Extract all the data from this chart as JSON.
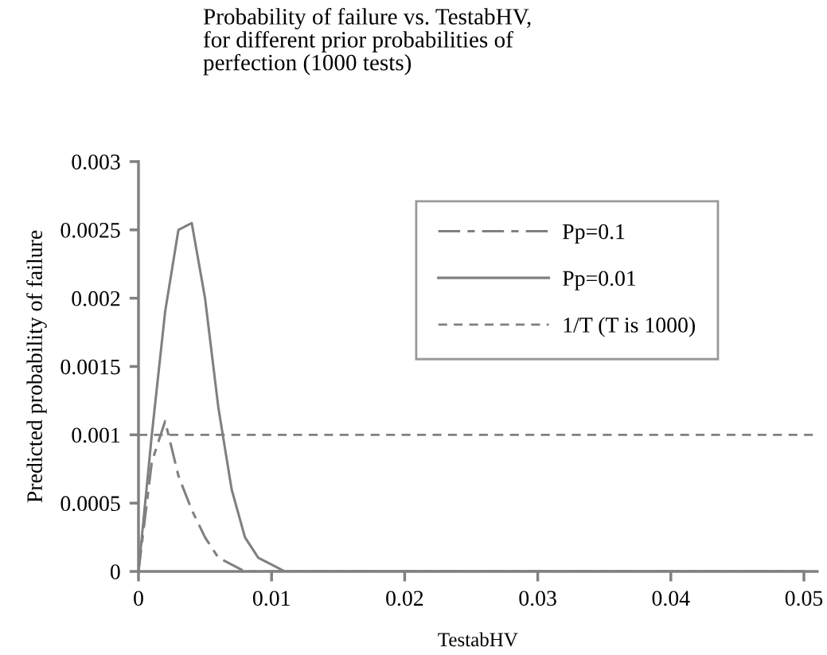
{
  "chart_data": {
    "type": "line",
    "title": "Probability of failure vs. TestabHV,\nfor different prior probabilities of\nperfection (1000 tests)",
    "xlabel": "TestabHV",
    "ylabel": "Predicted probability of failure",
    "series": [
      {
        "name": "Pp=0.1",
        "color": "#808080",
        "line_style": "dashed",
        "x": [
          0,
          0.001,
          0.002,
          0.003,
          0.004,
          0.005,
          0.006,
          0.007,
          0.008,
          0.009,
          0.01,
          0.02,
          0.03,
          0.04,
          0.05
        ],
        "values": [
          0,
          0.0008,
          0.0011,
          0.0007,
          0.00045,
          0.00025,
          0.0001,
          5e-05,
          0,
          0,
          0,
          0,
          0,
          0,
          0
        ]
      },
      {
        "name": "Pp=0.01",
        "color": "#808080",
        "line_style": "solid",
        "x": [
          0,
          0.001,
          0.002,
          0.003,
          0.004,
          0.005,
          0.006,
          0.007,
          0.008,
          0.009,
          0.01,
          0.011,
          0.012,
          0.013,
          0.02,
          0.03,
          0.04,
          0.05
        ],
        "values": [
          0,
          0.001,
          0.0019,
          0.0025,
          0.00255,
          0.002,
          0.0012,
          0.0006,
          0.00025,
          0.0001,
          5e-05,
          0,
          0,
          0,
          0,
          0,
          0,
          0
        ]
      }
    ],
    "ref_lines": [
      {
        "axis": "y",
        "value": 0.001,
        "label": "1/T (T is 1000)",
        "color": "#808080",
        "line_style": "dashed"
      }
    ],
    "xlim": [
      0,
      0.051
    ],
    "xticks": [
      0,
      0.01,
      0.02,
      0.03,
      0.04,
      0.05
    ],
    "ylim": [
      0,
      0.003
    ],
    "yticks": [
      0,
      0.0005,
      0.001,
      0.0015,
      0.002,
      0.0025,
      0.003
    ],
    "grid": false,
    "legend": "top right",
    "marker": "none"
  }
}
